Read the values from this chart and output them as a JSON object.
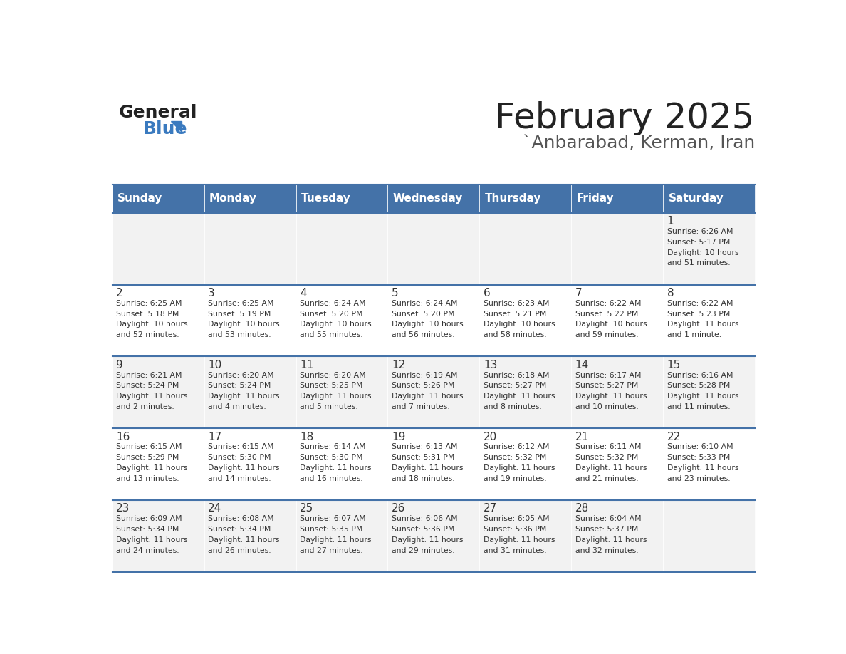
{
  "title": "February 2025",
  "subtitle": "`Anbarabad, Kerman, Iran",
  "days_of_week": [
    "Sunday",
    "Monday",
    "Tuesday",
    "Wednesday",
    "Thursday",
    "Friday",
    "Saturday"
  ],
  "header_bg": "#4472a8",
  "header_text": "#ffffff",
  "cell_bg_light": "#f2f2f2",
  "cell_bg_white": "#ffffff",
  "divider_color": "#4472a8",
  "text_color": "#333333",
  "day_num_color": "#333333",
  "title_color": "#222222",
  "subtitle_color": "#555555",
  "logo_general_color": "#222222",
  "logo_blue_color": "#3a7abf",
  "calendar": [
    [
      {
        "day": 0,
        "info": ""
      },
      {
        "day": 0,
        "info": ""
      },
      {
        "day": 0,
        "info": ""
      },
      {
        "day": 0,
        "info": ""
      },
      {
        "day": 0,
        "info": ""
      },
      {
        "day": 0,
        "info": ""
      },
      {
        "day": 1,
        "info": "Sunrise: 6:26 AM\nSunset: 5:17 PM\nDaylight: 10 hours\nand 51 minutes."
      }
    ],
    [
      {
        "day": 2,
        "info": "Sunrise: 6:25 AM\nSunset: 5:18 PM\nDaylight: 10 hours\nand 52 minutes."
      },
      {
        "day": 3,
        "info": "Sunrise: 6:25 AM\nSunset: 5:19 PM\nDaylight: 10 hours\nand 53 minutes."
      },
      {
        "day": 4,
        "info": "Sunrise: 6:24 AM\nSunset: 5:20 PM\nDaylight: 10 hours\nand 55 minutes."
      },
      {
        "day": 5,
        "info": "Sunrise: 6:24 AM\nSunset: 5:20 PM\nDaylight: 10 hours\nand 56 minutes."
      },
      {
        "day": 6,
        "info": "Sunrise: 6:23 AM\nSunset: 5:21 PM\nDaylight: 10 hours\nand 58 minutes."
      },
      {
        "day": 7,
        "info": "Sunrise: 6:22 AM\nSunset: 5:22 PM\nDaylight: 10 hours\nand 59 minutes."
      },
      {
        "day": 8,
        "info": "Sunrise: 6:22 AM\nSunset: 5:23 PM\nDaylight: 11 hours\nand 1 minute."
      }
    ],
    [
      {
        "day": 9,
        "info": "Sunrise: 6:21 AM\nSunset: 5:24 PM\nDaylight: 11 hours\nand 2 minutes."
      },
      {
        "day": 10,
        "info": "Sunrise: 6:20 AM\nSunset: 5:24 PM\nDaylight: 11 hours\nand 4 minutes."
      },
      {
        "day": 11,
        "info": "Sunrise: 6:20 AM\nSunset: 5:25 PM\nDaylight: 11 hours\nand 5 minutes."
      },
      {
        "day": 12,
        "info": "Sunrise: 6:19 AM\nSunset: 5:26 PM\nDaylight: 11 hours\nand 7 minutes."
      },
      {
        "day": 13,
        "info": "Sunrise: 6:18 AM\nSunset: 5:27 PM\nDaylight: 11 hours\nand 8 minutes."
      },
      {
        "day": 14,
        "info": "Sunrise: 6:17 AM\nSunset: 5:27 PM\nDaylight: 11 hours\nand 10 minutes."
      },
      {
        "day": 15,
        "info": "Sunrise: 6:16 AM\nSunset: 5:28 PM\nDaylight: 11 hours\nand 11 minutes."
      }
    ],
    [
      {
        "day": 16,
        "info": "Sunrise: 6:15 AM\nSunset: 5:29 PM\nDaylight: 11 hours\nand 13 minutes."
      },
      {
        "day": 17,
        "info": "Sunrise: 6:15 AM\nSunset: 5:30 PM\nDaylight: 11 hours\nand 14 minutes."
      },
      {
        "day": 18,
        "info": "Sunrise: 6:14 AM\nSunset: 5:30 PM\nDaylight: 11 hours\nand 16 minutes."
      },
      {
        "day": 19,
        "info": "Sunrise: 6:13 AM\nSunset: 5:31 PM\nDaylight: 11 hours\nand 18 minutes."
      },
      {
        "day": 20,
        "info": "Sunrise: 6:12 AM\nSunset: 5:32 PM\nDaylight: 11 hours\nand 19 minutes."
      },
      {
        "day": 21,
        "info": "Sunrise: 6:11 AM\nSunset: 5:32 PM\nDaylight: 11 hours\nand 21 minutes."
      },
      {
        "day": 22,
        "info": "Sunrise: 6:10 AM\nSunset: 5:33 PM\nDaylight: 11 hours\nand 23 minutes."
      }
    ],
    [
      {
        "day": 23,
        "info": "Sunrise: 6:09 AM\nSunset: 5:34 PM\nDaylight: 11 hours\nand 24 minutes."
      },
      {
        "day": 24,
        "info": "Sunrise: 6:08 AM\nSunset: 5:34 PM\nDaylight: 11 hours\nand 26 minutes."
      },
      {
        "day": 25,
        "info": "Sunrise: 6:07 AM\nSunset: 5:35 PM\nDaylight: 11 hours\nand 27 minutes."
      },
      {
        "day": 26,
        "info": "Sunrise: 6:06 AM\nSunset: 5:36 PM\nDaylight: 11 hours\nand 29 minutes."
      },
      {
        "day": 27,
        "info": "Sunrise: 6:05 AM\nSunset: 5:36 PM\nDaylight: 11 hours\nand 31 minutes."
      },
      {
        "day": 28,
        "info": "Sunrise: 6:04 AM\nSunset: 5:37 PM\nDaylight: 11 hours\nand 32 minutes."
      },
      {
        "day": 0,
        "info": ""
      }
    ]
  ]
}
